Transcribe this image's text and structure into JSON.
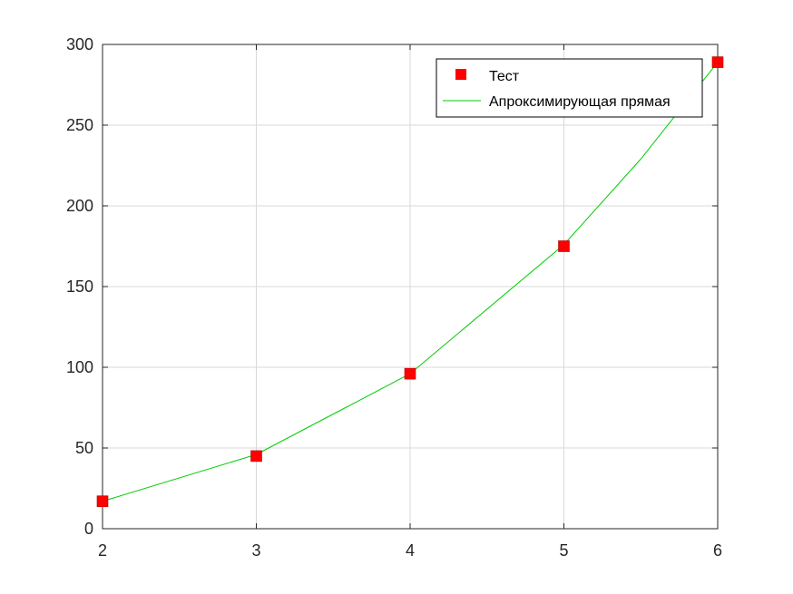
{
  "chart_data": {
    "type": "line",
    "title": "",
    "xlabel": "",
    "ylabel": "",
    "xlim": [
      2,
      6
    ],
    "ylim": [
      0,
      300
    ],
    "x_ticks": [
      2,
      3,
      4,
      5,
      6
    ],
    "y_ticks": [
      0,
      50,
      100,
      150,
      200,
      250,
      300
    ],
    "x_tick_labels": [
      "2",
      "3",
      "4",
      "5",
      "6"
    ],
    "y_tick_labels": [
      "0",
      "50",
      "100",
      "150",
      "200",
      "250",
      "300"
    ],
    "grid": true,
    "legend_position": "top-right",
    "series": [
      {
        "name": "Тест",
        "style": "markers",
        "marker": "square",
        "color": "#ff0000",
        "x": [
          2,
          3,
          4,
          5,
          6
        ],
        "y": [
          17,
          45,
          96,
          175,
          289
        ]
      },
      {
        "name": "Апроксимирующая прямая",
        "style": "line",
        "color": "#00cc00",
        "x": [
          2,
          3,
          4,
          5,
          5.5,
          6
        ],
        "y": [
          17,
          46,
          96,
          176,
          229,
          289
        ]
      }
    ]
  }
}
